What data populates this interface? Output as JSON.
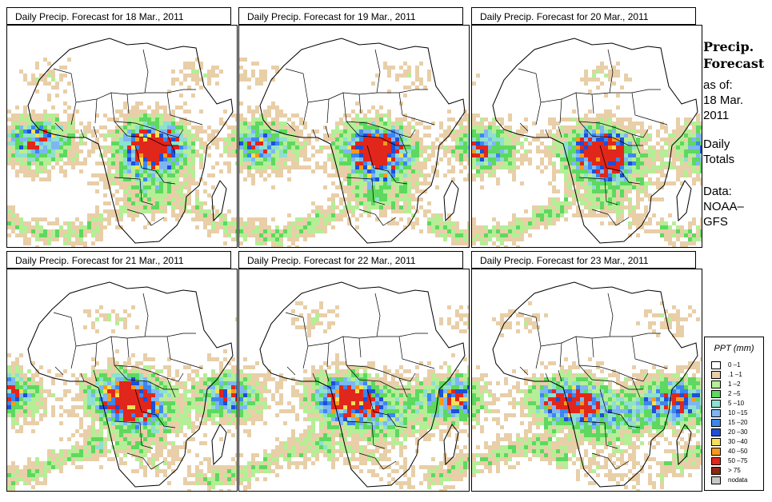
{
  "panels": [
    {
      "title": "Daily Precip. Forecast for  18 Mar., 2011",
      "seed": 18
    },
    {
      "title": "Daily Precip. Forecast for  19 Mar., 2011",
      "seed": 19
    },
    {
      "title": "Daily Precip. Forecast for  20 Mar., 2011",
      "seed": 20
    },
    {
      "title": "Daily Precip. Forecast for  21 Mar., 2011",
      "seed": 21
    },
    {
      "title": "Daily Precip. Forecast for  22 Mar., 2011",
      "seed": 22
    },
    {
      "title": "Daily Precip. Forecast for  23 Mar., 2011",
      "seed": 23
    }
  ],
  "sidebar": {
    "heading_line1": "Precip.",
    "heading_line2": "Forecast",
    "asof_label": "as of:",
    "date_line1": "18 Mar.",
    "date_line2": "2011",
    "totals_line1": "Daily",
    "totals_line2": "Totals",
    "data_label": "Data:",
    "source_line1": "NOAA–",
    "source_line2": "GFS"
  },
  "legend": {
    "title": "PPT (mm)",
    "items": [
      {
        "label": "0 –1",
        "color": "#ffffff"
      },
      {
        "label": ".1 –1",
        "color": "#e8cfa8"
      },
      {
        "label": "1 –2",
        "color": "#b5ee96"
      },
      {
        "label": "2 –5",
        "color": "#5ed860"
      },
      {
        "label": "5 –10",
        "color": "#8ee0cf"
      },
      {
        "label": "10 –15",
        "color": "#7fb6f2"
      },
      {
        "label": "15 –20",
        "color": "#3d86ef"
      },
      {
        "label": "20 –30",
        "color": "#1f4fd6"
      },
      {
        "label": "30 –40",
        "color": "#f5df5a"
      },
      {
        "label": "40 –50",
        "color": "#f59a1e"
      },
      {
        "label": "50 –75",
        "color": "#e1261b"
      },
      {
        "label": "> 75",
        "color": "#8b2a12"
      },
      {
        "label": "nodata",
        "color": "#c8c8c8"
      }
    ]
  }
}
